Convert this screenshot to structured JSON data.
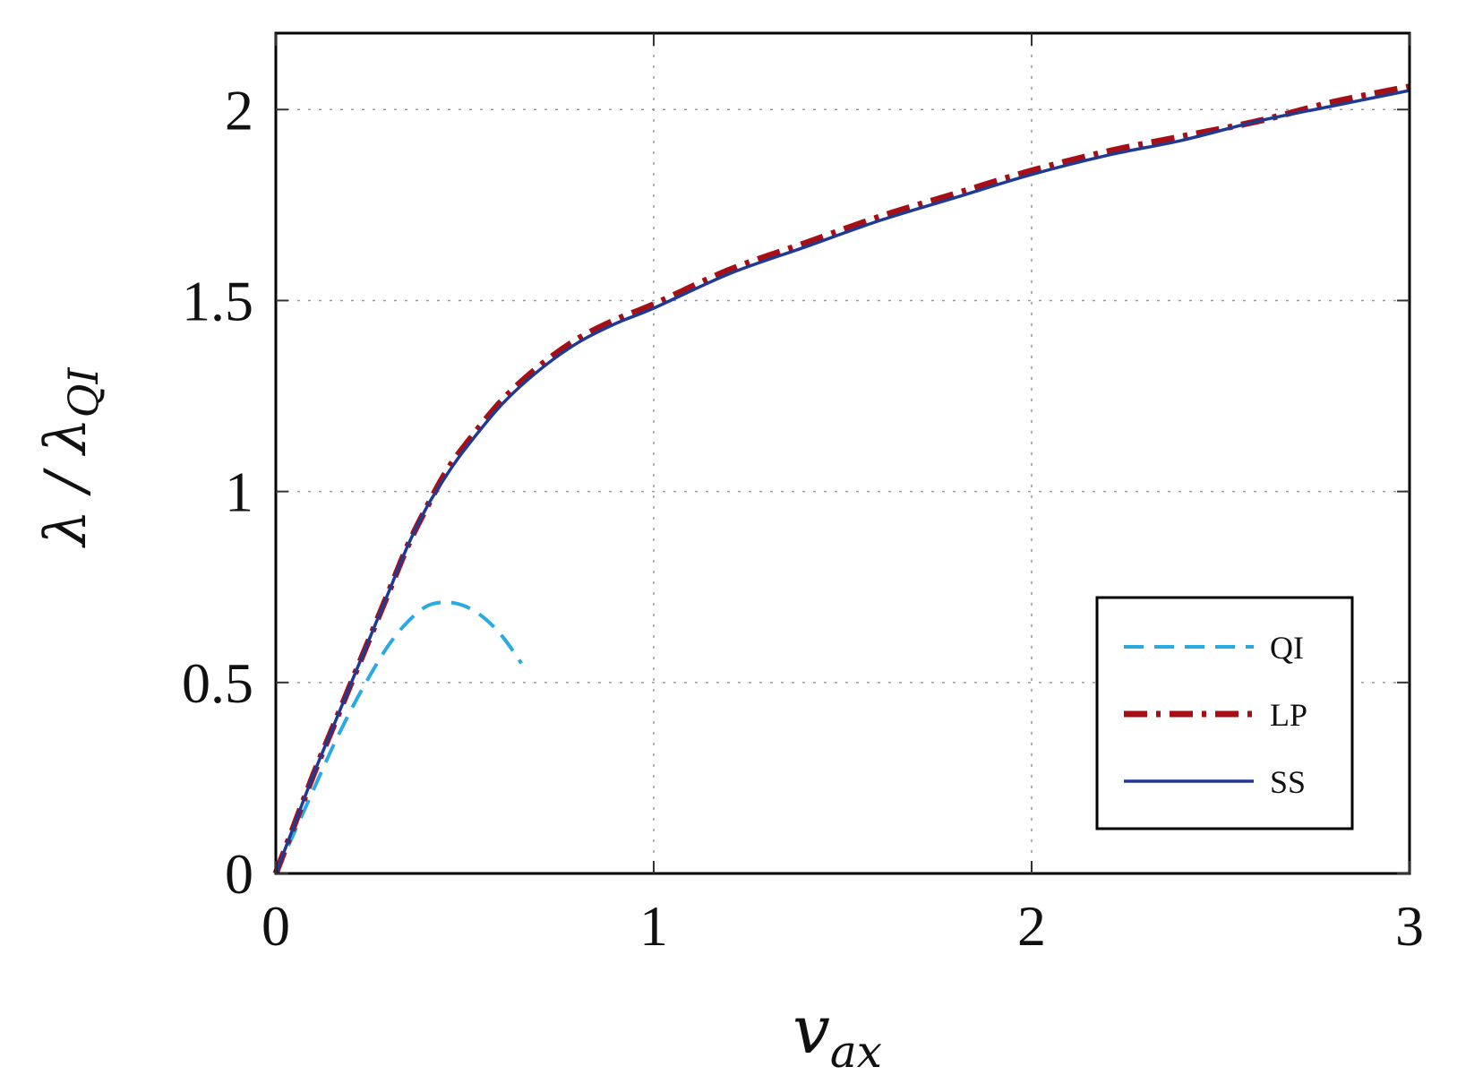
{
  "chart_data": {
    "type": "line",
    "xlabel_main": "v",
    "xlabel_sub": "ax",
    "ylabel_main": "λ / λ",
    "ylabel_sub": "QI",
    "xlim": [
      0,
      3
    ],
    "ylim": [
      0,
      2.2
    ],
    "x_ticks": [
      0,
      1,
      2,
      3
    ],
    "x_tick_labels": [
      "0",
      "1",
      "2",
      "3"
    ],
    "y_ticks": [
      0,
      0.5,
      1,
      1.5,
      2
    ],
    "y_tick_labels": [
      "0",
      "0.5",
      "1",
      "1.5",
      "2"
    ],
    "grid": true,
    "legend_position": "bottom-right",
    "series": [
      {
        "name": "QI",
        "color": "#29abe2",
        "style": "dashed",
        "x": [
          0,
          0.05,
          0.1,
          0.15,
          0.2,
          0.25,
          0.3,
          0.35,
          0.4,
          0.45,
          0.5,
          0.55,
          0.6,
          0.65
        ],
        "y": [
          0,
          0.11,
          0.22,
          0.33,
          0.43,
          0.52,
          0.6,
          0.66,
          0.7,
          0.71,
          0.7,
          0.67,
          0.62,
          0.55
        ]
      },
      {
        "name": "LP",
        "color": "#a50f15",
        "style": "dashdot",
        "x": [
          0,
          0.05,
          0.1,
          0.15,
          0.2,
          0.25,
          0.3,
          0.35,
          0.4,
          0.45,
          0.5,
          0.6,
          0.7,
          0.8,
          0.9,
          1.0,
          1.2,
          1.4,
          1.6,
          1.8,
          2.0,
          2.2,
          2.4,
          2.6,
          2.8,
          3.0
        ],
        "y": [
          0,
          0.13,
          0.26,
          0.38,
          0.5,
          0.62,
          0.74,
          0.86,
          0.96,
          1.05,
          1.12,
          1.24,
          1.33,
          1.4,
          1.45,
          1.49,
          1.58,
          1.65,
          1.72,
          1.78,
          1.84,
          1.89,
          1.93,
          1.97,
          2.02,
          2.06
        ]
      },
      {
        "name": "SS",
        "color": "#1f3a93",
        "style": "solid",
        "x": [
          0,
          0.05,
          0.1,
          0.15,
          0.2,
          0.25,
          0.3,
          0.35,
          0.4,
          0.45,
          0.5,
          0.6,
          0.7,
          0.8,
          0.9,
          1.0,
          1.2,
          1.4,
          1.6,
          1.8,
          2.0,
          2.2,
          2.4,
          2.6,
          2.8,
          3.0
        ],
        "y": [
          0,
          0.13,
          0.26,
          0.38,
          0.5,
          0.62,
          0.74,
          0.86,
          0.96,
          1.04,
          1.11,
          1.23,
          1.32,
          1.39,
          1.44,
          1.48,
          1.57,
          1.64,
          1.71,
          1.77,
          1.83,
          1.88,
          1.92,
          1.97,
          2.01,
          2.05
        ]
      }
    ]
  }
}
